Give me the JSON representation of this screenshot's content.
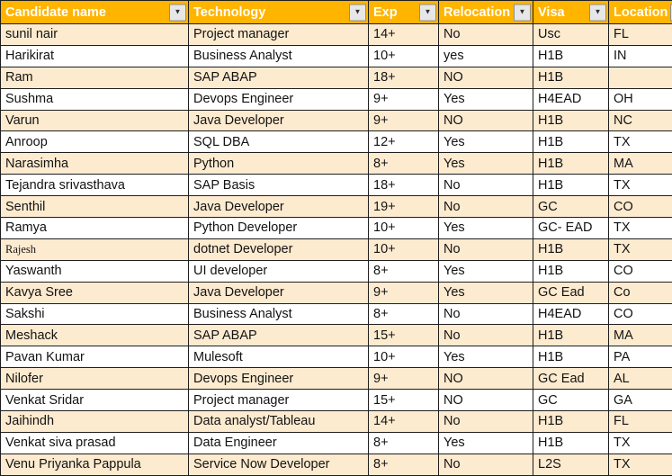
{
  "icons": {
    "filter_dropdown_icon": "▼"
  },
  "colors": {
    "header_bg": "#FFB400",
    "header_text": "#FFFFFF",
    "alt_row": "#FDEBD0",
    "row_bg": "#FFFFFF",
    "border": "#1E1E1E",
    "cell_text": "#131313",
    "btn_bg": "#E7E7E7",
    "btn_border": "#8F8F8F",
    "btn_glyph": "#2E2E2E"
  },
  "table": {
    "columns": [
      {
        "key": "candidate",
        "label": "Candidate name"
      },
      {
        "key": "technology",
        "label": "Technology"
      },
      {
        "key": "exp",
        "label": "Exp"
      },
      {
        "key": "relocation",
        "label": "Relocation"
      },
      {
        "key": "visa",
        "label": "Visa"
      },
      {
        "key": "location",
        "label": "Location"
      }
    ],
    "rows": [
      {
        "candidate": "sunil nair",
        "technology": "Project manager",
        "exp": "14+",
        "relocation": "No",
        "visa": "Usc",
        "location": "FL"
      },
      {
        "candidate": "Harikirat",
        "technology": "Business Analyst",
        "exp": "10+",
        "relocation": "yes",
        "visa": "H1B",
        "location": "IN"
      },
      {
        "candidate": "Ram",
        "technology": "SAP ABAP",
        "exp": "18+",
        "relocation": "NO",
        "visa": "H1B",
        "location": ""
      },
      {
        "candidate": "Sushma",
        "technology": "Devops Engineer",
        "exp": "9+",
        "relocation": "Yes",
        "visa": "H4EAD",
        "location": "OH"
      },
      {
        "candidate": "Varun",
        "technology": "Java Developer",
        "exp": "9+",
        "relocation": "NO",
        "visa": "H1B",
        "location": "NC"
      },
      {
        "candidate": "Anroop",
        "technology": "SQL DBA",
        "exp": "12+",
        "relocation": "Yes",
        "visa": "H1B",
        "location": "TX"
      },
      {
        "candidate": "Narasimha",
        "technology": "Python",
        "exp": "8+",
        "relocation": "Yes",
        "visa": "H1B",
        "location": "MA"
      },
      {
        "candidate": "Tejandra srivasthava",
        "technology": "SAP Basis",
        "exp": "18+",
        "relocation": "No",
        "visa": "H1B",
        "location": "TX"
      },
      {
        "candidate": "Senthil",
        "technology": "Java Developer",
        "exp": "19+",
        "relocation": "No",
        "visa": "GC",
        "location": "CO"
      },
      {
        "candidate": "Ramya",
        "technology": "Python Developer",
        "exp": "10+",
        "relocation": "Yes",
        "visa": "GC- EAD",
        "location": "TX"
      },
      {
        "candidate": "Rajesh",
        "technology": "dotnet Developer",
        "exp": "10+",
        "relocation": "No",
        "visa": "H1B",
        "location": "TX",
        "serif": true
      },
      {
        "candidate": "Yaswanth",
        "technology": "UI developer",
        "exp": "8+",
        "relocation": "Yes",
        "visa": "H1B",
        "location": "CO"
      },
      {
        "candidate": "Kavya Sree",
        "technology": "Java Developer",
        "exp": "9+",
        "relocation": "Yes",
        "visa": "GC Ead",
        "location": "Co"
      },
      {
        "candidate": "Sakshi",
        "technology": "Business Analyst",
        "exp": "8+",
        "relocation": "No",
        "visa": "H4EAD",
        "location": "CO"
      },
      {
        "candidate": "Meshack",
        "technology": "SAP ABAP",
        "exp": "15+",
        "relocation": "No",
        "visa": "H1B",
        "location": "MA"
      },
      {
        "candidate": "Pavan Kumar",
        "technology": "Mulesoft",
        "exp": "10+",
        "relocation": "Yes",
        "visa": "H1B",
        "location": "PA"
      },
      {
        "candidate": "Nilofer",
        "technology": "Devops Engineer",
        "exp": "9+",
        "relocation": "NO",
        "visa": "GC Ead",
        "location": "AL"
      },
      {
        "candidate": "Venkat Sridar",
        "technology": "Project manager",
        "exp": "15+",
        "relocation": "NO",
        "visa": "GC",
        "location": "GA"
      },
      {
        "candidate": "Jaihindh",
        "technology": "Data analyst/Tableau",
        "exp": "14+",
        "relocation": "No",
        "visa": "H1B",
        "location": "FL"
      },
      {
        "candidate": "Venkat siva prasad",
        "technology": "Data Engineer",
        "exp": "8+",
        "relocation": "Yes",
        "visa": "H1B",
        "location": "TX"
      },
      {
        "candidate": "Venu Priyanka Pappula",
        "technology": "Service Now Developer",
        "exp": "8+",
        "relocation": "No",
        "visa": "L2S",
        "location": "TX"
      }
    ]
  }
}
